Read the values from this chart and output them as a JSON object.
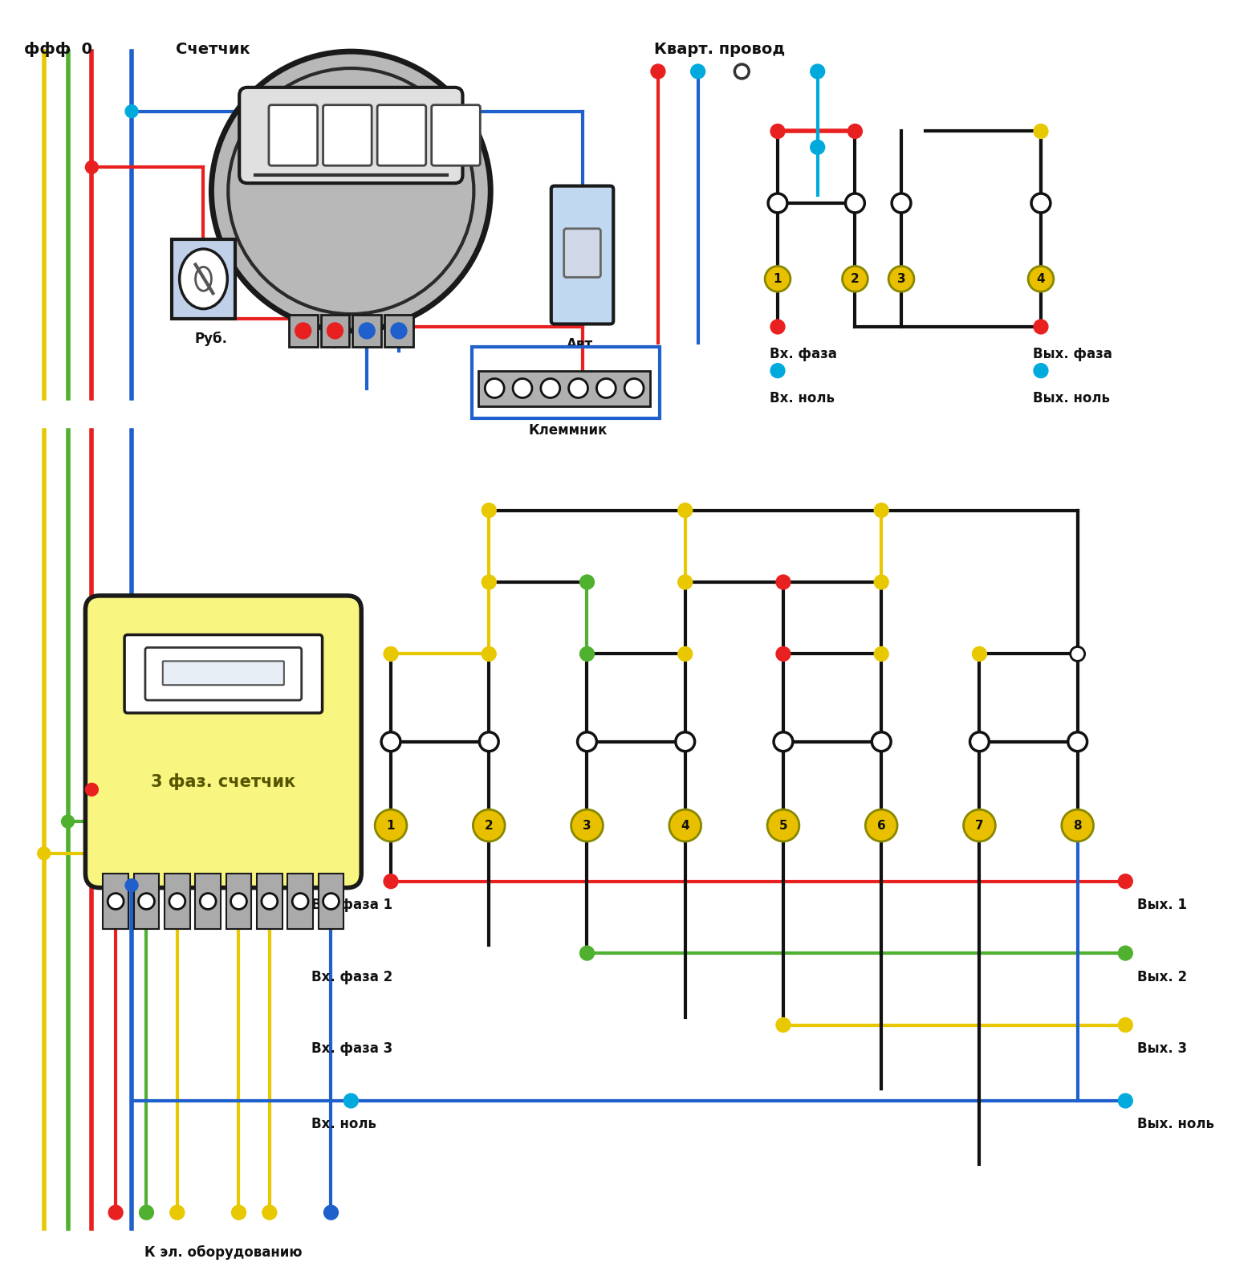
{
  "bg_color": "#ffffff",
  "colors": {
    "red": "#e82020",
    "blue": "#2060cc",
    "yellow": "#e8c800",
    "green": "#50b030",
    "cyan": "#00aadd",
    "dark": "#111111",
    "gray_meter": "#b8b8b8",
    "gray_meter2": "#888888",
    "gray_light": "#d0d0d0",
    "yellow_bg": "#f8f580",
    "label_yellow": "#e8c000",
    "avt_blue": "#c0d8f0",
    "rub_blue": "#c0d0e8"
  },
  "labels": {
    "fff0": "ффф  0",
    "schetcik": "Счетчик",
    "kvart_provod": "Кварт. провод",
    "rub": "Руб.",
    "avt": "Авт.",
    "klemnik": "Клеммник",
    "vx_faza": "Вх. фаза",
    "vix_faza": "Вых. фаза",
    "vx_nol": "Вх. ноль",
    "vix_nol": "Вых. ноль",
    "3faz_schetcik": "3 фаз. счетчик",
    "k_el_ob": "К эл. оборудованию",
    "vx_faza1": "Вх. фаза 1",
    "vx_faza2": "Вх. фаза 2",
    "vx_faza3": "Вх. фаза 3",
    "vx_nol2": "Вх. ноль",
    "vix1": "Вых. 1",
    "vix2": "Вых. 2",
    "vix3": "Вых. 3",
    "vix_nol2": "Вых. ноль"
  }
}
